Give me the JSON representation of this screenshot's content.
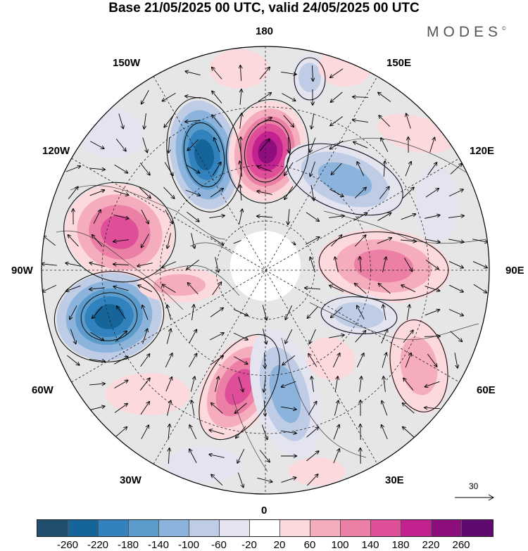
{
  "title": "Base 21/05/2025 00 UTC, valid 24/05/2025 00 UTC",
  "brand": "MODES",
  "brand_mark": "©",
  "longitude_labels": {
    "l180": "180",
    "l150w": "150W",
    "l150e": "150E",
    "l120w": "120W",
    "l120e": "120E",
    "l90w": "90W",
    "l90e": "90E",
    "l60w": "60W",
    "l60e": "60E",
    "l30w": "30W",
    "l30e": "30E",
    "l0": "0"
  },
  "vector_scale_label": "30",
  "colorbar": {
    "colors": [
      "#1f4e6e",
      "#15659a",
      "#3182bd",
      "#5b9ccc",
      "#8cb3dc",
      "#bfcce5",
      "#e4e4f1",
      "#ffffff",
      "#fbd9dd",
      "#f5acbc",
      "#ec7fa6",
      "#df4e99",
      "#c3218f",
      "#8e0e7e",
      "#5e0a6e"
    ],
    "tick_labels": [
      "-260",
      "-220",
      "-180",
      "-140",
      "-100",
      "-60",
      "-20",
      "20",
      "60",
      "100",
      "140",
      "180",
      "220",
      "260"
    ]
  },
  "anomaly_centers": [
    {
      "lon": "120W-150W",
      "sign": "negative",
      "level": "-220"
    },
    {
      "lon": "150E-180",
      "sign": "positive",
      "level": "260"
    },
    {
      "lon": "100W-120W",
      "sign": "positive",
      "level": "180"
    },
    {
      "lon": "60W-90W",
      "sign": "negative",
      "level": "-220"
    },
    {
      "lon": "0-30W",
      "sign": "positive",
      "level": "180"
    },
    {
      "lon": "90E",
      "sign": "positive",
      "level": "140"
    },
    {
      "lon": "100E-150E",
      "sign": "negative",
      "level": "-100"
    },
    {
      "lon": "0-30E",
      "sign": "negative",
      "level": "-100"
    },
    {
      "lon": "60E",
      "sign": "positive",
      "level": "60"
    },
    {
      "lon": "90E-120E",
      "sign": "negative",
      "level": "-60"
    }
  ]
}
